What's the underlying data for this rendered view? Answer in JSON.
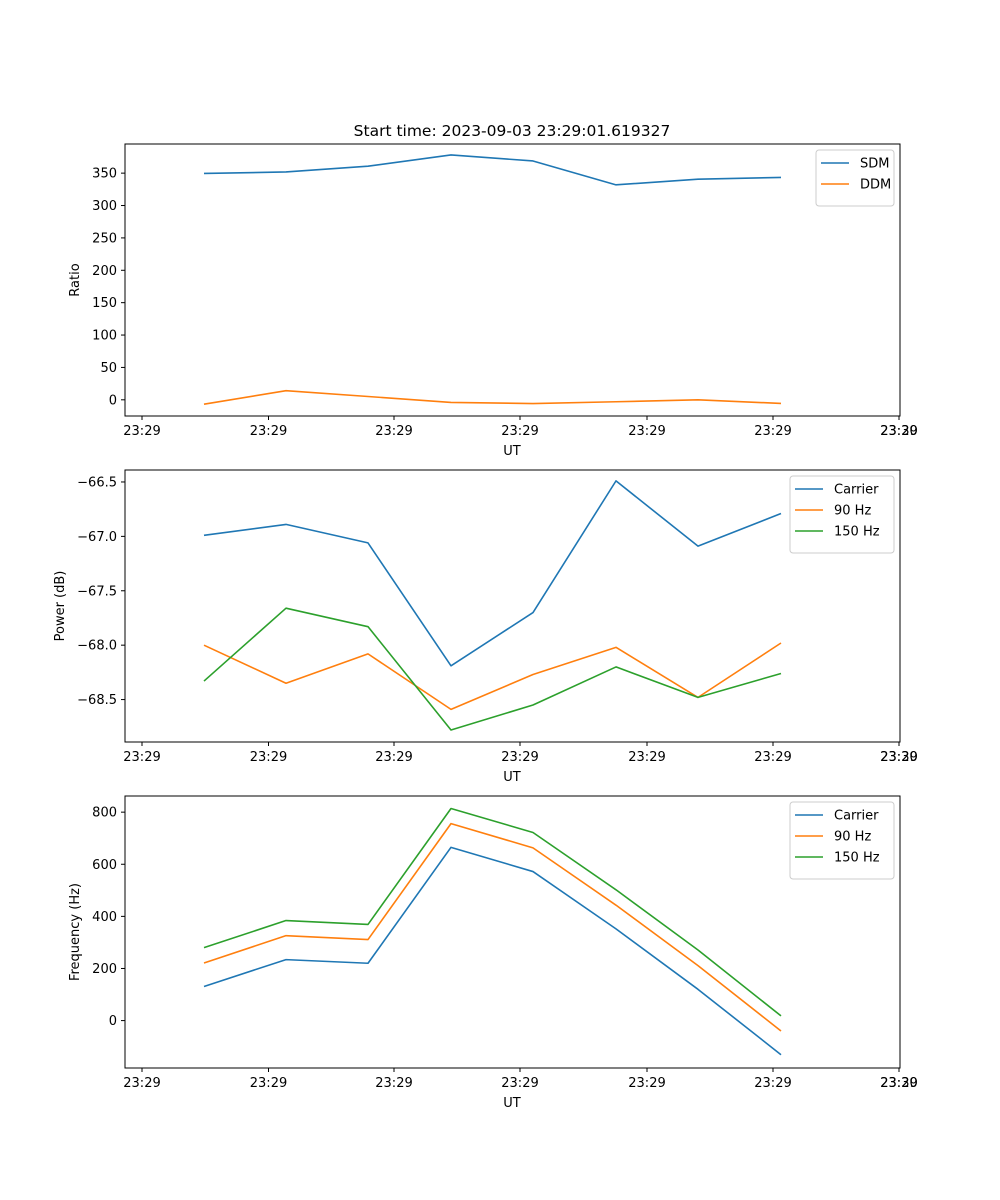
{
  "title": "Start time: 2023-09-03 23:29:01.619327",
  "colors": {
    "c0": "#1f77b4",
    "c1": "#ff7f0e",
    "c2": "#2ca02c"
  },
  "chart_data": [
    {
      "type": "line",
      "xlabel": "UT",
      "ylabel": "Ratio",
      "x_tick_labels": [
        "23:29",
        "23:29",
        "23:29",
        "23:29",
        "23:29",
        "23:29",
        "23:29",
        "23:30"
      ],
      "y_ticks": [
        0,
        50,
        100,
        150,
        200,
        250,
        300,
        350
      ],
      "ylim": [
        -25,
        395
      ],
      "series": [
        {
          "name": "SDM",
          "values": [
            349.5,
            351.8,
            360.8,
            378.1,
            368.8,
            331.9,
            340.6,
            343.4
          ]
        },
        {
          "name": "DDM",
          "values": [
            -6.7,
            14.1,
            5.1,
            -4.0,
            -5.8,
            -3.0,
            0.0,
            -5.6
          ]
        }
      ],
      "legend": "top-right"
    },
    {
      "type": "line",
      "xlabel": "UT",
      "ylabel": "Power (dB)",
      "x_tick_labels": [
        "23:29",
        "23:29",
        "23:29",
        "23:29",
        "23:29",
        "23:29",
        "23:29",
        "23:30"
      ],
      "y_ticks": [
        -66.5,
        -67.0,
        -67.5,
        -68.0,
        -68.5
      ],
      "y_tick_labels": [
        "−66.5",
        "−67.0",
        "−67.5",
        "−68.0",
        "−68.5"
      ],
      "ylim": [
        -68.89,
        -66.39
      ],
      "series": [
        {
          "name": "Carrier",
          "values": [
            -66.99,
            -66.89,
            -67.06,
            -68.19,
            -67.7,
            -66.49,
            -67.09,
            -66.79
          ]
        },
        {
          "name": "90 Hz",
          "values": [
            -68.0,
            -68.35,
            -68.08,
            -68.59,
            -68.27,
            -68.02,
            -68.48,
            -67.98
          ]
        },
        {
          "name": "150 Hz",
          "values": [
            -68.33,
            -67.66,
            -67.83,
            -68.78,
            -68.55,
            -68.2,
            -68.48,
            -68.26
          ]
        }
      ],
      "legend": "top-right"
    },
    {
      "type": "line",
      "xlabel": "UT",
      "ylabel": "Frequency (Hz)",
      "x_tick_labels": [
        "23:29",
        "23:29",
        "23:29",
        "23:29",
        "23:29",
        "23:29",
        "23:29",
        "23:30"
      ],
      "y_ticks": [
        0,
        200,
        400,
        600,
        800
      ],
      "ylim": [
        -182,
        862
      ],
      "series": [
        {
          "name": "Carrier",
          "values": [
            131,
            234,
            220,
            665,
            572,
            352,
            120,
            -131
          ]
        },
        {
          "name": "90 Hz",
          "values": [
            221,
            326,
            311,
            756,
            663,
            443,
            211,
            -40
          ]
        },
        {
          "name": "150 Hz",
          "values": [
            280,
            384,
            369,
            814,
            722,
            502,
            271,
            18
          ]
        }
      ],
      "legend": "top-right"
    }
  ]
}
